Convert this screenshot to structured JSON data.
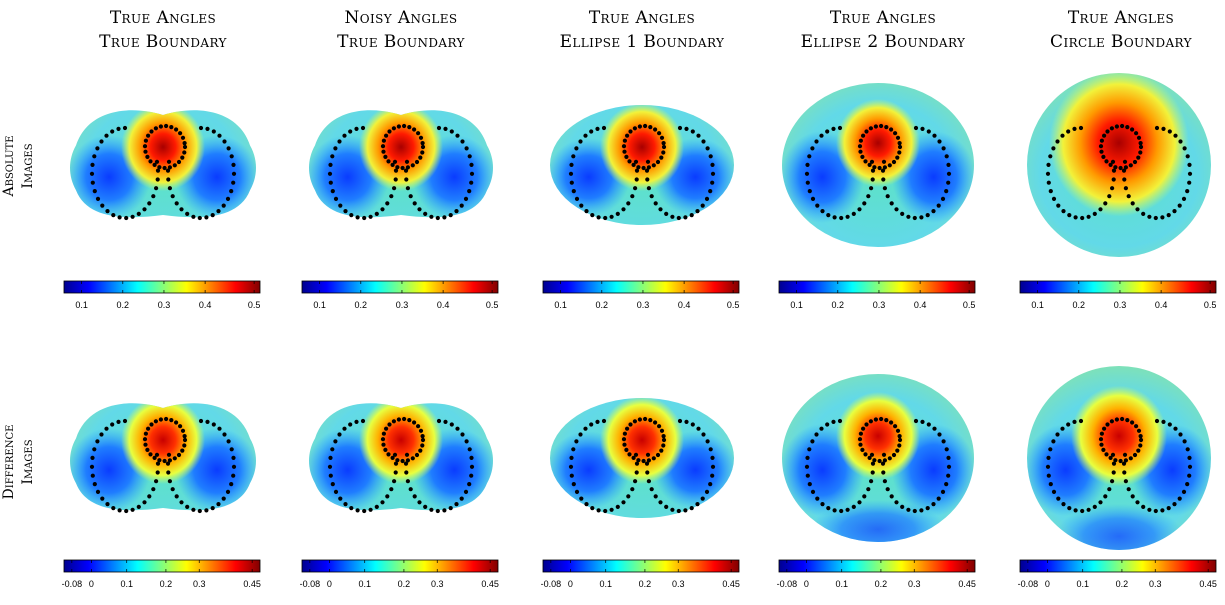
{
  "columns": [
    {
      "line1": "True Angles",
      "line2": "True Boundary"
    },
    {
      "line1": "Noisy Angles",
      "line2": "True Boundary"
    },
    {
      "line1": "True Angles",
      "line2": "Ellipse 1 Boundary"
    },
    {
      "line1": "True Angles",
      "line2": "Ellipse 2 Boundary"
    },
    {
      "line1": "True Angles",
      "line2": "Circle Boundary"
    }
  ],
  "rows": [
    {
      "line1": "Absolute",
      "line2": "Images",
      "colorbar_ticks": [
        "0.1",
        "0.2",
        "0.3",
        "0.4",
        "0.5"
      ]
    },
    {
      "line1": "Difference",
      "line2": "Images",
      "colorbar_ticks": [
        "-0.08",
        "0",
        "0.1",
        "0.2",
        "0.3",
        "0.45"
      ]
    }
  ],
  "colormap": "jet",
  "colors": {
    "dots": "#000000",
    "background": "#ffffff"
  }
}
